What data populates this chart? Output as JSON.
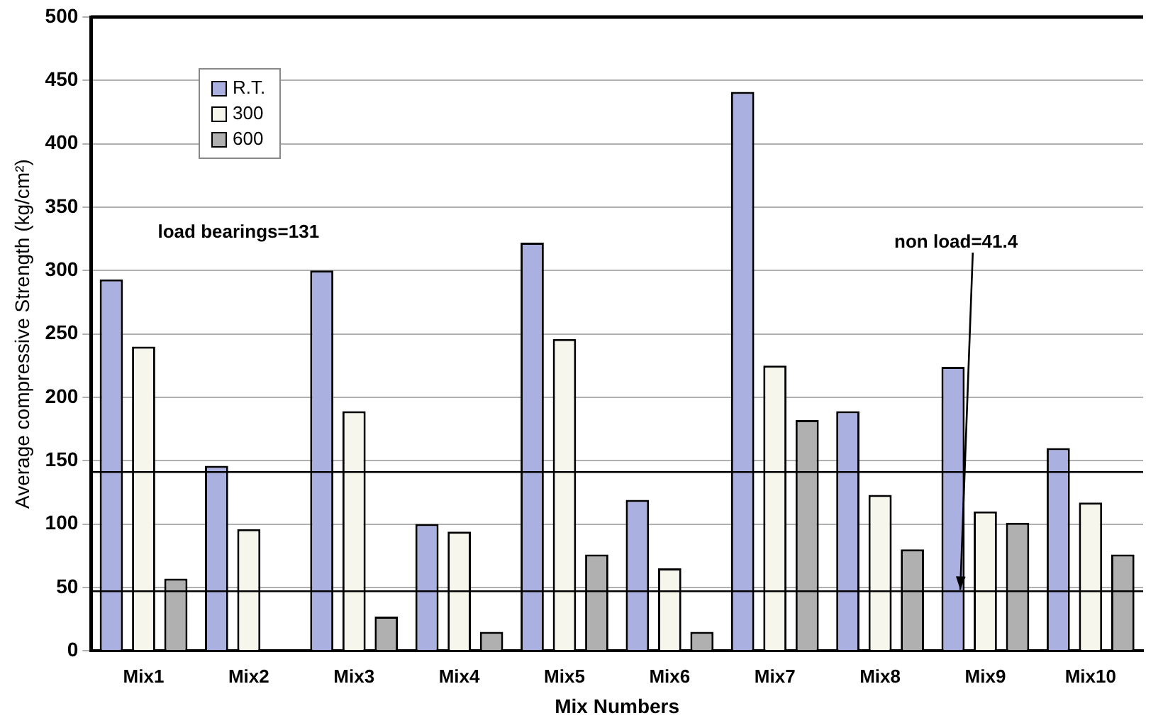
{
  "chart_data": {
    "type": "bar",
    "xlabel": "Mix Numbers",
    "ylabel": "Average compressive Strength (kg/cm²)",
    "categories": [
      "Mix1",
      "Mix2",
      "Mix3",
      "Mix4",
      "Mix5",
      "Mix6",
      "Mix7",
      "Mix8",
      "Mix9",
      "Mix10"
    ],
    "series": [
      {
        "name": "R.T.",
        "color": "#aab0e0",
        "values": [
          293,
          146,
          300,
          100,
          322,
          119,
          441,
          189,
          224,
          160
        ]
      },
      {
        "name": "300",
        "color": "#f6f6ec",
        "values": [
          240,
          96,
          189,
          94,
          246,
          65,
          225,
          123,
          110,
          117
        ]
      },
      {
        "name": "600",
        "color": "#b0b0b0",
        "values": [
          57,
          null,
          27,
          15,
          76,
          15,
          182,
          80,
          101,
          76
        ]
      }
    ],
    "ylim": [
      0,
      500
    ],
    "yticks": [
      0,
      50,
      100,
      150,
      200,
      250,
      300,
      350,
      400,
      450,
      500
    ],
    "grid": "y",
    "legend": "top left",
    "ref_lines": [
      {
        "axis": "y",
        "value": 141,
        "color": "#000000"
      },
      {
        "axis": "y",
        "value": 47,
        "color": "#000000"
      }
    ],
    "annotations": [
      "load bearings=131",
      {
        "text": "non load=41.4",
        "y": 47
      }
    ]
  }
}
